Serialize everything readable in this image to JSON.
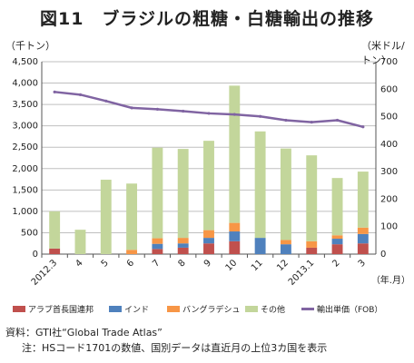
{
  "title": "図11　ブラジルの粗糖・白糖輸出の推移",
  "left_unit": "（千トン）",
  "right_unit": "（米ドル/トン）",
  "colors": {
    "arab": "#c0504d",
    "india": "#4f81bd",
    "bangladesh": "#f79646",
    "other": "#c3d69b",
    "price": "#8064a2",
    "grid": "#bfbfbf",
    "axis": "#555555"
  },
  "chart_data": {
    "type": "bar",
    "stacked": true,
    "xlabel": "（年.月）",
    "categories": [
      "2012.3",
      "4",
      "5",
      "6",
      "7",
      "8",
      "9",
      "10",
      "11",
      "12",
      "2013.1",
      "2",
      "3"
    ],
    "ylim_left": [
      0,
      4500
    ],
    "ylim_right": [
      0,
      700
    ],
    "y_ticks_left": [
      "0",
      "500",
      "1,000",
      "1,500",
      "2,000",
      "2,500",
      "3,000",
      "3,500",
      "4,000",
      "4,500"
    ],
    "y_ticks_right": [
      "0",
      "100",
      "200",
      "300",
      "400",
      "500",
      "600",
      "700"
    ],
    "series": [
      {
        "name": "アラブ首長国連邦",
        "axis": "left",
        "values": [
          130,
          0,
          0,
          0,
          120,
          150,
          250,
          300,
          0,
          0,
          150,
          230,
          250
        ]
      },
      {
        "name": "インド",
        "axis": "left",
        "values": [
          0,
          0,
          0,
          0,
          120,
          100,
          130,
          230,
          380,
          230,
          0,
          130,
          220
        ]
      },
      {
        "name": "バングラデシュ",
        "axis": "left",
        "values": [
          0,
          0,
          0,
          100,
          130,
          130,
          180,
          200,
          0,
          100,
          150,
          80,
          150
        ]
      },
      {
        "name": "その他",
        "axis": "left",
        "values": [
          870,
          570,
          1740,
          1550,
          2120,
          2080,
          2090,
          3210,
          2490,
          2140,
          2010,
          1340,
          1310
        ]
      },
      {
        "name": "輸出単価（FOB）",
        "axis": "right",
        "type": "line",
        "values": [
          590,
          580,
          557,
          532,
          527,
          520,
          512,
          508,
          501,
          487,
          480,
          487,
          463
        ]
      }
    ],
    "legend_position": "bottom",
    "grid": true
  },
  "notes": [
    "資料：GTI社“Global Trade Atlas”",
    "注：HSコード1701の数値、国別データは直近月の上位3カ国を表示"
  ]
}
